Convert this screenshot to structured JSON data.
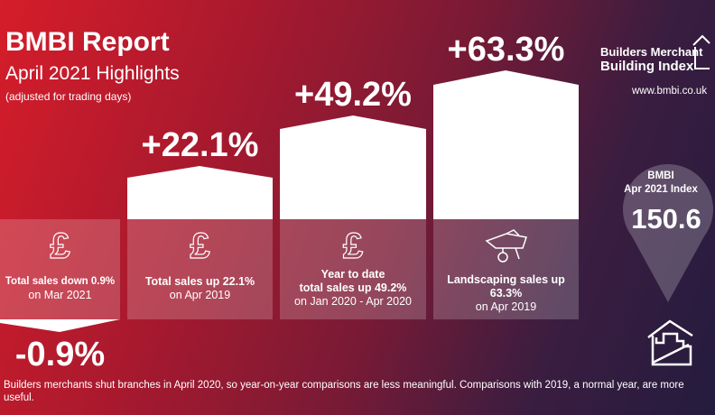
{
  "header": {
    "title": "BMBI Report",
    "subtitle": "April 2021 Highlights",
    "note": "(adjusted for trading days)"
  },
  "logo": {
    "line1": "Builders Merchant",
    "line2": "Building Index",
    "url": "www.bmbi.co.uk"
  },
  "highlights": [
    {
      "value": "-0.9%",
      "line1": "Total sales down 0.9%",
      "line2": "",
      "line3": "on Mar 2021",
      "icon": "pound-icon"
    },
    {
      "value": "+22.1%",
      "line1": "Total sales up 22.1%",
      "line2": "",
      "line3": "on Apr 2019",
      "icon": "pound-icon"
    },
    {
      "value": "+49.2%",
      "line1": "Year to date",
      "line2": "total sales up 49.2%",
      "line3": "on Jan 2020 - Apr 2020",
      "icon": "pound-icon"
    },
    {
      "value": "+63.3%",
      "line1": "Landscaping sales up",
      "line2": "63.3%",
      "line3": "on Apr 2019",
      "icon": "wheelbarrow-icon"
    }
  ],
  "index": {
    "label1": "BMBI",
    "label2": "Apr 2021 Index",
    "value": "150.6"
  },
  "footer": "Builders merchants shut branches in April 2020, so year-on-year comparisons are less meaningful. Comparisons with 2019, a normal year, are more useful."
}
